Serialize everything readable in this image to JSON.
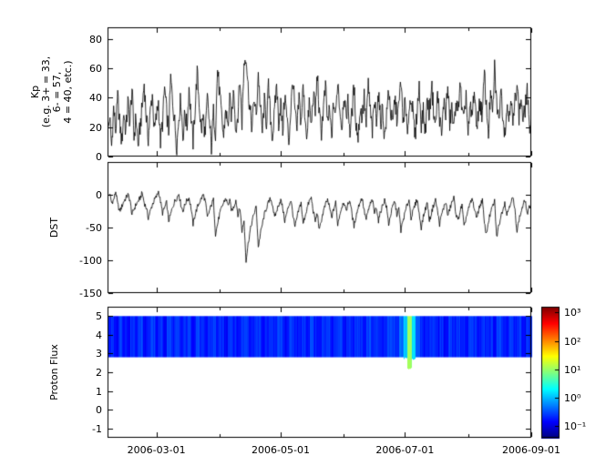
{
  "colors": {
    "line": "#000000",
    "frame": "#000000",
    "background": "#ffffff"
  },
  "x_axis": {
    "start_day": 0,
    "end_day": 208,
    "ticks": [
      {
        "day": 24,
        "label": "2006-03-01"
      },
      {
        "day": 85,
        "label": "2006-05-01"
      },
      {
        "day": 146,
        "label": "2006-07-01"
      },
      {
        "day": 208,
        "label": "2006-09-01"
      }
    ],
    "minor_tick_days": [
      55,
      116,
      177
    ]
  },
  "chart_data": [
    {
      "type": "line",
      "name": "kp",
      "ylabel_lines": [
        "Kp",
        "(e.g. 3+ = 33,",
        "6- = 57,",
        "4 = 40, etc.)"
      ],
      "ylim": [
        0,
        88
      ],
      "yticks": [
        0,
        20,
        40,
        60,
        80
      ],
      "x_step_days": 1,
      "values": [
        13,
        27,
        7,
        33,
        17,
        40,
        23,
        10,
        30,
        17,
        37,
        23,
        47,
        13,
        27,
        7,
        20,
        33,
        50,
        27,
        13,
        30,
        43,
        17,
        27,
        37,
        10,
        23,
        47,
        30,
        17,
        53,
        37,
        23,
        7,
        27,
        40,
        13,
        30,
        20,
        47,
        27,
        10,
        33,
        57,
        37,
        17,
        27,
        13,
        40,
        23,
        7,
        30,
        17,
        60,
        43,
        27,
        13,
        33,
        20,
        37,
        27,
        47,
        17,
        30,
        53,
        23,
        63,
        70,
        47,
        30,
        20,
        40,
        27,
        57,
        33,
        17,
        37,
        23,
        47,
        27,
        13,
        30,
        50,
        23,
        37,
        17,
        43,
        27,
        10,
        33,
        53,
        30,
        17,
        40,
        23,
        47,
        27,
        13,
        37,
        20,
        43,
        30,
        57,
        27,
        17,
        33,
        47,
        23,
        30,
        13,
        37,
        27,
        53,
        33,
        20,
        43,
        27,
        37,
        17,
        30,
        47,
        23,
        13,
        33,
        27,
        40,
        20,
        50,
        30,
        17,
        37,
        27,
        43,
        23,
        33,
        13,
        27,
        47,
        30,
        20,
        40,
        27,
        33,
        53,
        23,
        37,
        17,
        30,
        43,
        27,
        13,
        33,
        47,
        23,
        30,
        17,
        40,
        27,
        50,
        33,
        20,
        43,
        27,
        13,
        37,
        30,
        47,
        23,
        33,
        17,
        40,
        27,
        53,
        30,
        23,
        43,
        13,
        33,
        27,
        47,
        20,
        30,
        37,
        27,
        57,
        33,
        17,
        43,
        27,
        60,
        37,
        23,
        47,
        30,
        17,
        33,
        27,
        43,
        20,
        37,
        53,
        27,
        40,
        23,
        33,
        47,
        17,
        30
      ]
    },
    {
      "type": "line",
      "name": "dst",
      "ylabel": "DST",
      "ylim": [
        -150,
        50
      ],
      "yticks": [
        0,
        -50,
        -100,
        -150
      ],
      "x_step_days": 1,
      "values": [
        -5,
        2,
        -12,
        -8,
        5,
        -15,
        -25,
        -18,
        -10,
        -5,
        0,
        -8,
        -30,
        -22,
        -15,
        -10,
        -5,
        3,
        -12,
        -20,
        -35,
        -25,
        -15,
        -8,
        -3,
        5,
        -10,
        -28,
        -20,
        -12,
        -40,
        -30,
        -18,
        -10,
        -5,
        2,
        -15,
        -25,
        -15,
        -8,
        -5,
        -20,
        -45,
        -30,
        -20,
        -12,
        -6,
        0,
        -10,
        -35,
        -25,
        -15,
        -8,
        -60,
        -45,
        -30,
        -20,
        -12,
        -5,
        -15,
        -10,
        -25,
        -18,
        -8,
        -30,
        -20,
        -55,
        -40,
        -100,
        -75,
        -55,
        -40,
        -28,
        -18,
        -80,
        -60,
        -45,
        -30,
        -20,
        -12,
        -6,
        -15,
        -35,
        -25,
        -15,
        -8,
        -20,
        -40,
        -28,
        -16,
        -8,
        -30,
        -50,
        -35,
        -22,
        -12,
        -45,
        -32,
        -20,
        -10,
        -5,
        -25,
        -40,
        -28,
        -55,
        -38,
        -25,
        -15,
        -8,
        -20,
        -35,
        -22,
        -12,
        -45,
        -30,
        -18,
        -10,
        -25,
        -15,
        -8,
        -30,
        -48,
        -32,
        -20,
        -10,
        -5,
        -25,
        -38,
        -24,
        -14,
        -8,
        -28,
        -18,
        -40,
        -26,
        -16,
        -8,
        -20,
        -45,
        -30,
        -18,
        -10,
        -30,
        -22,
        -55,
        -40,
        -28,
        -16,
        -8,
        -35,
        -25,
        -15,
        -6,
        -30,
        -50,
        -34,
        -22,
        -12,
        -40,
        -28,
        -16,
        -8,
        -25,
        -45,
        -30,
        -20,
        -10,
        -32,
        -22,
        -12,
        -5,
        -28,
        -40,
        -26,
        -16,
        -50,
        -35,
        -24,
        -14,
        -6,
        -20,
        -35,
        -25,
        -15,
        -8,
        -45,
        -60,
        -40,
        -28,
        -18,
        -10,
        -65,
        -48,
        -34,
        -22,
        -12,
        -30,
        -20,
        -10,
        -5,
        -25,
        -55,
        -38,
        -26,
        -16,
        -8,
        -30,
        -20,
        -12
      ]
    },
    {
      "type": "heatmap",
      "name": "proton_flux",
      "ylabel": "Proton Flux",
      "ylim": [
        -1.5,
        5.5
      ],
      "yticks": [
        -1,
        0,
        1,
        2,
        3,
        4,
        5
      ],
      "band": {
        "ymin": 2.8,
        "ymax": 5.0
      },
      "scale": "log",
      "log_clim": [
        -1.4,
        3.2
      ],
      "colormap": "jet",
      "x_step_days": 2,
      "values": [
        0.18,
        0.22,
        0.15,
        0.28,
        0.2,
        0.17,
        0.25,
        0.19,
        0.3,
        0.16,
        0.21,
        0.27,
        0.18,
        0.23,
        0.15,
        0.29,
        0.2,
        0.24,
        0.17,
        0.22,
        0.26,
        0.18,
        0.31,
        0.2,
        0.16,
        0.23,
        0.27,
        0.19,
        0.22,
        0.15,
        0.28,
        0.21,
        0.17,
        0.25,
        0.3,
        0.18,
        0.22,
        0.26,
        0.16,
        0.2,
        0.24,
        0.18,
        0.29,
        0.21,
        0.15,
        0.27,
        0.22,
        0.17,
        0.25,
        0.19,
        0.31,
        0.2,
        0.16,
        0.24,
        0.28,
        0.18,
        0.21,
        0.26,
        0.15,
        0.23,
        0.19,
        0.27,
        0.22,
        0.16,
        0.3,
        0.2,
        0.25,
        0.17,
        0.21,
        0.28,
        0.26,
        0.2,
        0.45,
        1.2,
        10.5,
        1.6,
        0.4,
        0.24,
        0.17,
        0.22,
        0.27,
        0.18,
        0.23,
        0.16,
        0.29,
        0.21,
        0.25,
        0.19,
        0.15,
        0.26,
        0.22,
        0.17,
        0.28,
        0.2,
        0.24,
        0.16,
        0.3,
        0.21,
        0.18,
        0.25,
        0.19,
        0.27,
        0.15,
        0.23,
        0.2
      ],
      "colorbar_ticks": [
        {
          "logv": 3,
          "label": "10³"
        },
        {
          "logv": 2,
          "label": "10²"
        },
        {
          "logv": 1,
          "label": "10¹"
        },
        {
          "logv": 0,
          "label": "10⁰"
        },
        {
          "logv": -1,
          "label": "10⁻¹"
        }
      ]
    }
  ]
}
